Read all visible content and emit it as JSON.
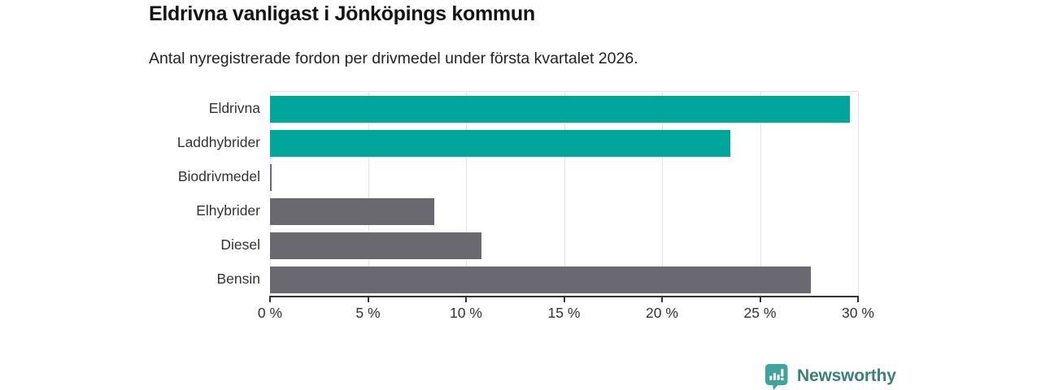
{
  "chart_data": {
    "type": "bar",
    "orientation": "horizontal",
    "title": "Eldrivna vanligast i Jönköpings kommun",
    "subtitle": "Antal nyregistrerade fordon per drivmedel under första kvartalet 2026.",
    "categories": [
      "Eldrivna",
      "Laddhybrider",
      "Biodrivmedel",
      "Elhybrider",
      "Diesel",
      "Bensin"
    ],
    "values": [
      29.6,
      23.5,
      0.1,
      8.4,
      10.8,
      27.6
    ],
    "value_unit": "%",
    "bar_colors": [
      "#00a69b",
      "#00a69b",
      "#6a696f",
      "#6a696f",
      "#6a696f",
      "#6a696f"
    ],
    "xlim": [
      0,
      30
    ],
    "tick_values": [
      0,
      5,
      10,
      15,
      20,
      25,
      30
    ],
    "tick_labels": [
      "0 %",
      "5 %",
      "10 %",
      "15 %",
      "20 %",
      "25 %",
      "30 %"
    ],
    "grid": true,
    "legend": false
  },
  "colors": {
    "accent_teal": "#00a69b",
    "neutral_gray": "#6a696f",
    "axis": "#333333",
    "grid": "#e4e4e4",
    "logo_icon": "#3fa49d",
    "logo_text": "#3c7f7b"
  },
  "branding": {
    "name": "Newsworthy"
  }
}
